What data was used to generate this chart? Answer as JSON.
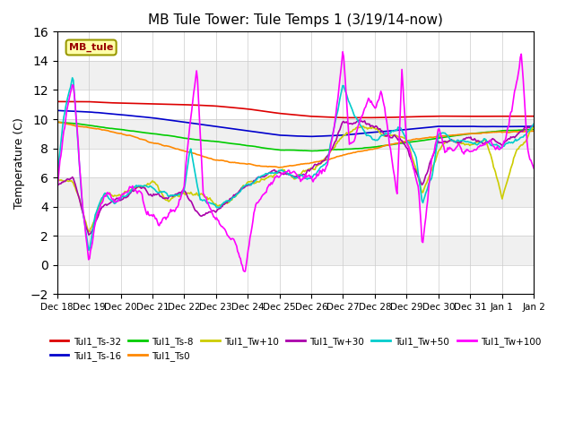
{
  "title": "MB Tule Tower: Tule Temps 1 (3/19/14-now)",
  "ylabel": "Temperature (C)",
  "ylim": [
    -2,
    16
  ],
  "yticks": [
    -2,
    0,
    2,
    4,
    6,
    8,
    10,
    12,
    14,
    16
  ],
  "annotation_label": "MB_tule",
  "x_tick_labels": [
    "Dec 18",
    "Dec 19",
    "Dec 20",
    "Dec 21",
    "Dec 22",
    "Dec 23",
    "Dec 24",
    "Dec 25",
    "Dec 26",
    "Dec 27",
    "Dec 28",
    "Dec 29",
    "Dec 30",
    "Dec 31",
    "Jan 1",
    "Jan 2"
  ],
  "grid_color": "#cccccc",
  "grid_bg": "#e8e8e8",
  "series_colors": {
    "Tul1_Ts-32": "#dd0000",
    "Tul1_Ts-16": "#0000cc",
    "Tul1_Ts-8": "#00cc00",
    "Tul1_Ts0": "#ff8800",
    "Tul1_Tw+10": "#cccc00",
    "Tul1_Tw+30": "#aa00aa",
    "Tul1_Tw+50": "#00cccc",
    "Tul1_Tw+100": "#ff00ff"
  },
  "legend_order": [
    "Tul1_Ts-32",
    "Tul1_Ts-16",
    "Tul1_Ts-8",
    "Tul1_Ts0",
    "Tul1_Tw+10",
    "Tul1_Tw+30",
    "Tul1_Tw+50",
    "Tul1_Tw+100"
  ]
}
